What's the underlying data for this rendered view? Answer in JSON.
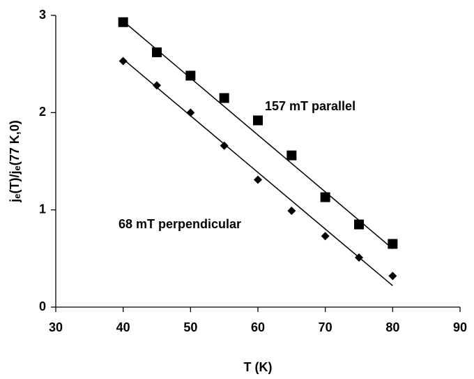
{
  "chart_data": {
    "type": "scatter",
    "x_label": "T (K)",
    "y_label": "je(T)/je(77 K,0)",
    "xlim": [
      30,
      90
    ],
    "xticks": [
      30,
      40,
      50,
      60,
      70,
      80,
      90
    ],
    "ylim": [
      0,
      3
    ],
    "yticks": [
      0,
      1,
      2,
      3
    ],
    "series": [
      {
        "marker": "square",
        "color": "#000000",
        "x": [
          40,
          45,
          50,
          55,
          60,
          65,
          70,
          75,
          80
        ],
        "values": [
          2.93,
          2.62,
          2.38,
          2.15,
          1.92,
          1.56,
          1.13,
          0.85,
          0.65
        ],
        "fit": {
          "x": [
            40,
            80
          ],
          "values": [
            2.94,
            0.6
          ]
        }
      },
      {
        "marker": "diamond",
        "color": "#000000",
        "x": [
          40,
          45,
          50,
          55,
          60,
          65,
          70,
          75,
          80
        ],
        "values": [
          2.53,
          2.28,
          2.0,
          1.66,
          1.31,
          0.99,
          0.73,
          0.51,
          0.32
        ],
        "fit": {
          "x": [
            40,
            80
          ],
          "values": [
            2.55,
            0.22
          ]
        }
      }
    ],
    "annotations": [
      "157 mT parallel",
      "68 mT perpendicular"
    ]
  }
}
